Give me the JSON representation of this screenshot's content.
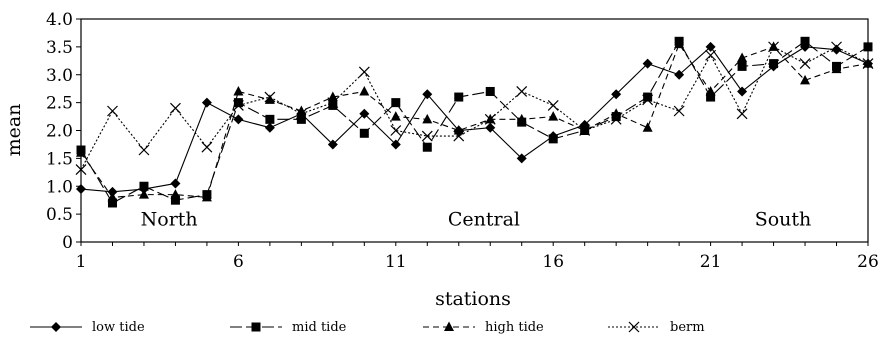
{
  "chart_data": {
    "type": "line",
    "title": "",
    "xlabel": "stations",
    "ylabel": "mean",
    "xlim": [
      1,
      26
    ],
    "ylim": [
      0,
      4.0
    ],
    "x_ticks": [
      1,
      6,
      11,
      16,
      21,
      26
    ],
    "y_ticks": [
      0,
      0.5,
      1.0,
      1.5,
      2.0,
      2.5,
      3.0,
      3.5,
      4.0
    ],
    "y_tick_labels": [
      "0",
      "0.5",
      "1.0",
      "1.5",
      "2.0",
      "2.5",
      "3.0",
      "3.5",
      "4.0"
    ],
    "grid": false,
    "legend_position": "bottom",
    "annotations": [
      {
        "text": "North",
        "x": 3.8,
        "y": 0.3
      },
      {
        "text": "Central",
        "x": 13.8,
        "y": 0.3
      },
      {
        "text": "South",
        "x": 23.3,
        "y": 0.3
      }
    ],
    "x": [
      1,
      2,
      3,
      4,
      5,
      6,
      7,
      8,
      9,
      10,
      11,
      12,
      13,
      14,
      15,
      16,
      17,
      18,
      19,
      20,
      21,
      22,
      23,
      24,
      25,
      26
    ],
    "series": [
      {
        "name": "low tide",
        "marker": "diamond",
        "dash": "solid",
        "values": [
          0.95,
          0.9,
          0.95,
          1.05,
          2.5,
          2.2,
          2.05,
          2.3,
          1.75,
          2.3,
          1.75,
          2.65,
          2.0,
          2.05,
          1.5,
          1.9,
          2.1,
          2.65,
          3.2,
          3.0,
          3.5,
          2.7,
          3.15,
          3.5,
          3.45,
          3.2
        ]
      },
      {
        "name": "mid tide",
        "marker": "square",
        "dash": "longdash",
        "values": [
          1.65,
          0.7,
          1.0,
          0.75,
          0.85,
          2.5,
          2.2,
          2.2,
          2.45,
          1.95,
          2.5,
          1.7,
          2.6,
          2.7,
          2.15,
          1.85,
          2.0,
          2.25,
          2.6,
          3.6,
          2.6,
          3.15,
          3.2,
          3.6,
          3.15,
          3.5
        ]
      },
      {
        "name": "high tide",
        "marker": "triangle",
        "dash": "dash",
        "values": [
          1.6,
          0.8,
          0.85,
          0.85,
          0.8,
          2.7,
          2.55,
          2.35,
          2.6,
          2.7,
          2.25,
          2.2,
          2.0,
          2.2,
          2.2,
          2.25,
          2.0,
          2.3,
          2.05,
          3.55,
          2.7,
          3.3,
          3.5,
          2.9,
          3.1,
          3.2
        ]
      },
      {
        "name": "berm",
        "marker": "cross",
        "dash": "dot",
        "values": [
          1.3,
          2.35,
          1.65,
          2.4,
          1.7,
          2.45,
          2.6,
          2.3,
          2.5,
          3.05,
          2.0,
          1.9,
          1.9,
          2.2,
          2.7,
          2.45,
          2.0,
          2.2,
          2.55,
          2.35,
          3.35,
          2.3,
          3.5,
          3.2,
          3.5,
          3.2
        ]
      }
    ]
  }
}
